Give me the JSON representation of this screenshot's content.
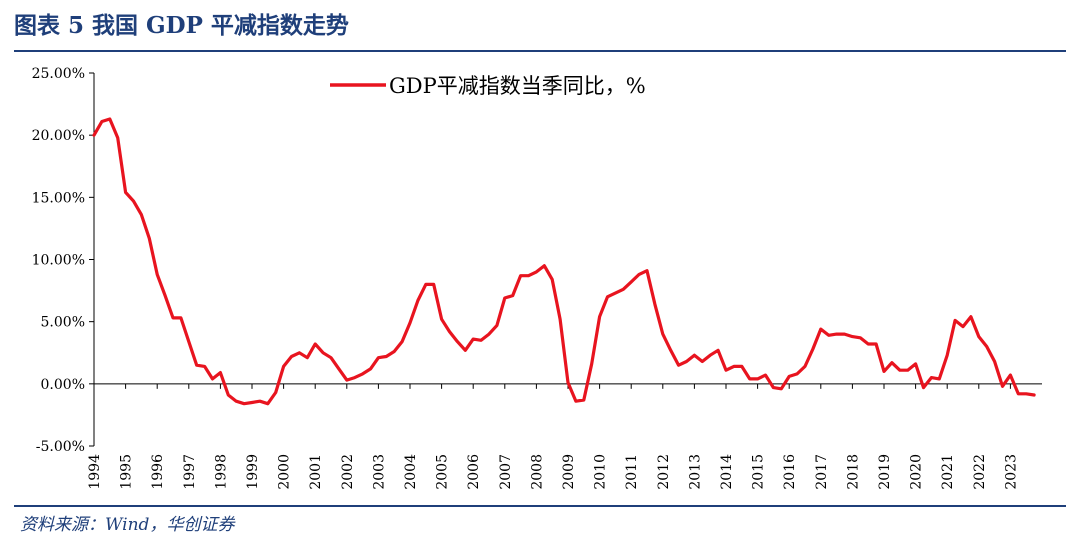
{
  "header": {
    "title": "图表 5    我国 GDP 平减指数走势"
  },
  "footer": {
    "source": "资料来源：Wind，华创证券"
  },
  "chart_data": {
    "type": "line",
    "title": "",
    "xlabel": "",
    "ylabel": "",
    "ylim": [
      -5,
      25
    ],
    "y_ticks": [
      "25.00%",
      "20.00%",
      "15.00%",
      "10.00%",
      "5.00%",
      "0.00%",
      "-5.00%"
    ],
    "x_ticks": [
      "1994",
      "1995",
      "1996",
      "1997",
      "1998",
      "1999",
      "2000",
      "2001",
      "2002",
      "2003",
      "2004",
      "2005",
      "2006",
      "2007",
      "2008",
      "2009",
      "2010",
      "2011",
      "2012",
      "2013",
      "2014",
      "2015",
      "2016",
      "2017",
      "2018",
      "2019",
      "2020",
      "2021",
      "2022",
      "2023"
    ],
    "x_range": [
      1994.0,
      2024.0
    ],
    "grid": false,
    "legend_position": "top",
    "series": [
      {
        "name": "GDP平减指数当季同比，%",
        "color": "#e8141f",
        "x": [
          1994.0,
          1994.25,
          1994.5,
          1994.75,
          1995.0,
          1995.25,
          1995.5,
          1995.75,
          1996.0,
          1996.25,
          1996.5,
          1996.75,
          1997.0,
          1997.25,
          1997.5,
          1997.75,
          1998.0,
          1998.25,
          1998.5,
          1998.75,
          1999.0,
          1999.25,
          1999.5,
          1999.75,
          2000.0,
          2000.25,
          2000.5,
          2000.75,
          2001.0,
          2001.25,
          2001.5,
          2001.75,
          2002.0,
          2002.25,
          2002.5,
          2002.75,
          2003.0,
          2003.25,
          2003.5,
          2003.75,
          2004.0,
          2004.25,
          2004.5,
          2004.75,
          2005.0,
          2005.25,
          2005.5,
          2005.75,
          2006.0,
          2006.25,
          2006.5,
          2006.75,
          2007.0,
          2007.25,
          2007.5,
          2007.75,
          2008.0,
          2008.25,
          2008.5,
          2008.75,
          2009.0,
          2009.25,
          2009.5,
          2009.75,
          2010.0,
          2010.25,
          2010.5,
          2010.75,
          2011.0,
          2011.25,
          2011.5,
          2011.75,
          2012.0,
          2012.25,
          2012.5,
          2012.75,
          2013.0,
          2013.25,
          2013.5,
          2013.75,
          2014.0,
          2014.25,
          2014.5,
          2014.75,
          2015.0,
          2015.25,
          2015.5,
          2015.75,
          2016.0,
          2016.25,
          2016.5,
          2016.75,
          2017.0,
          2017.25,
          2017.5,
          2017.75,
          2018.0,
          2018.25,
          2018.5,
          2018.75,
          2019.0,
          2019.25,
          2019.5,
          2019.75,
          2020.0,
          2020.25,
          2020.5,
          2020.75,
          2021.0,
          2021.25,
          2021.5,
          2021.75,
          2022.0,
          2022.25,
          2022.5,
          2022.75,
          2023.0,
          2023.25,
          2023.5,
          2023.75
        ],
        "values": [
          20.0,
          21.1,
          21.3,
          19.8,
          15.4,
          14.7,
          13.6,
          11.7,
          8.8,
          7.1,
          5.3,
          5.3,
          3.4,
          1.5,
          1.4,
          0.4,
          0.9,
          -0.9,
          -1.4,
          -1.6,
          -1.5,
          -1.4,
          -1.6,
          -0.7,
          1.4,
          2.2,
          2.5,
          2.1,
          3.2,
          2.5,
          2.1,
          1.2,
          0.3,
          0.5,
          0.8,
          1.2,
          2.1,
          2.2,
          2.6,
          3.4,
          4.9,
          6.7,
          8.0,
          8.0,
          5.2,
          4.2,
          3.4,
          2.7,
          3.6,
          3.5,
          4.0,
          4.7,
          6.9,
          7.1,
          8.7,
          8.7,
          9.0,
          9.5,
          8.4,
          5.2,
          0.1,
          -1.4,
          -1.3,
          1.6,
          5.4,
          7.0,
          7.3,
          7.6,
          8.2,
          8.8,
          9.1,
          6.4,
          4.0,
          2.7,
          1.5,
          1.8,
          2.3,
          1.8,
          2.3,
          2.7,
          1.1,
          1.4,
          1.4,
          0.4,
          0.4,
          0.7,
          -0.3,
          -0.4,
          0.6,
          0.8,
          1.4,
          2.8,
          4.4,
          3.9,
          4.0,
          4.0,
          3.8,
          3.7,
          3.2,
          3.2,
          1.0,
          1.7,
          1.1,
          1.1,
          1.6,
          -0.3,
          0.5,
          0.4,
          2.3,
          5.1,
          4.6,
          5.4,
          3.8,
          3.0,
          1.8,
          -0.2,
          0.7,
          -0.8,
          -0.8,
          -0.9
        ]
      }
    ]
  }
}
